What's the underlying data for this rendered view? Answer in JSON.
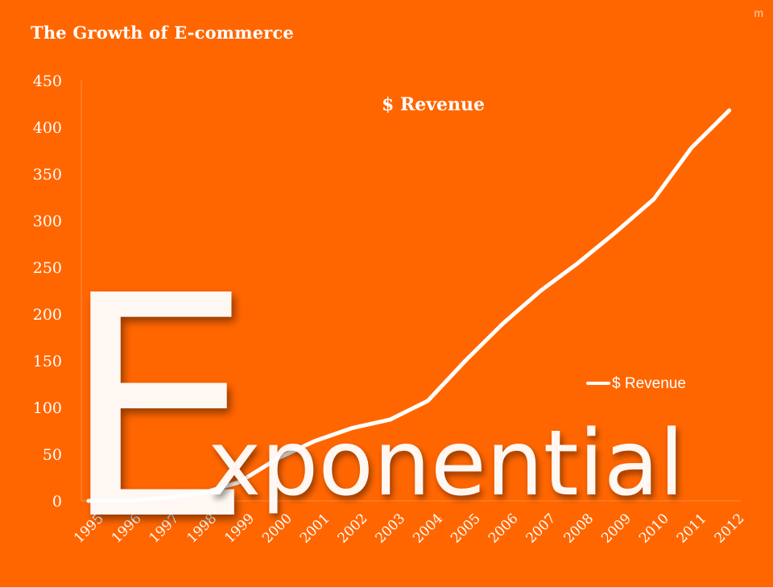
{
  "slide": {
    "title": "The Growth of E-commerce",
    "corner_mark": "m",
    "overlay_initial": "E",
    "overlay_rest": "xponential"
  },
  "colors": {
    "background": "#ff6600",
    "line": "#ffffff",
    "text": "#ffffff"
  },
  "chart_data": {
    "type": "line",
    "title": "$ Revenue",
    "xlabel": "",
    "ylabel": "",
    "categories": [
      "1995",
      "1996",
      "1997",
      "1998",
      "1999",
      "2000",
      "2001",
      "2002",
      "2003",
      "2004",
      "2005",
      "2006",
      "2007",
      "2008",
      "2009",
      "2010",
      "2011",
      "2012"
    ],
    "series": [
      {
        "name": "$ Revenue",
        "values": [
          0,
          0,
          3,
          8,
          20,
          45,
          64,
          78,
          87,
          107,
          150,
          190,
          225,
          255,
          288,
          323,
          378,
          418
        ]
      }
    ],
    "ylim": [
      0,
      450
    ],
    "yticks": [
      "0",
      "50",
      "100",
      "150",
      "200",
      "250",
      "300",
      "350",
      "400",
      "450"
    ],
    "grid": false,
    "legend": "right"
  }
}
